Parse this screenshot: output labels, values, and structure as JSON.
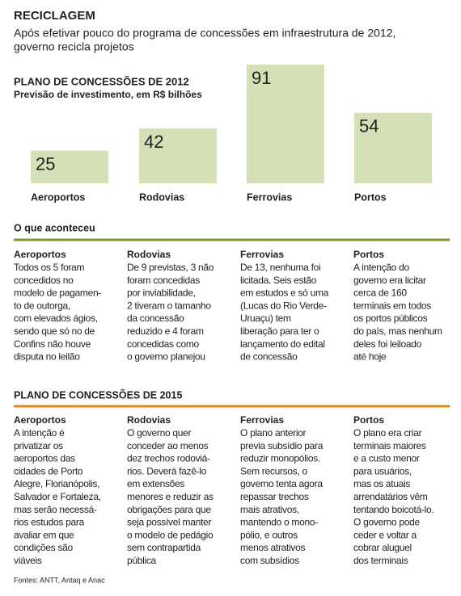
{
  "header": {
    "title": "RECICLAGEM",
    "subtitle_lines": [
      "Após efetivar pouco do programa de concessões em infraestrutura de 2012,",
      "governo recicla projetos"
    ]
  },
  "chart_data": {
    "type": "bar",
    "title": "PLANO DE CONCESSÕES DE 2012",
    "subtitle": "Previsão de investimento, em R$ bilhões",
    "categories": [
      "Aeroportos",
      "Rodovias",
      "Ferrovias",
      "Portos"
    ],
    "values": [
      25,
      42,
      91,
      54
    ],
    "color": "#d4e1b6"
  },
  "sections": [
    {
      "title": "O que aconteceu",
      "color": "#7b9a2c",
      "columns": [
        {
          "title": "Aeroportos",
          "lines": [
            "Todos os 5 foram",
            "concedidos no",
            "modelo de pagamen-",
            "to de outorga,",
            "com elevados ágios,",
            "sendo que só no de",
            "Confins não houve",
            "disputa no leilão"
          ]
        },
        {
          "title": "Rodovias",
          "lines": [
            "De 9 previstas, 3 não",
            "foram concedidas",
            "por inviabilidade,",
            "2 tiveram o tamanho",
            "da concessão",
            "reduzido e 4 foram",
            "concedidas como",
            "o governo planejou"
          ]
        },
        {
          "title": "Ferrovias",
          "lines": [
            "De 13, nenhuma foi",
            "licitada. Seis estão",
            "em estudos e só uma",
            "(Lucas do Rio Verde-",
            "Uruaçu) tem",
            "liberação para ter o",
            "lançamento do edital",
            "de concessão"
          ]
        },
        {
          "title": "Portos",
          "lines": [
            "A intenção do",
            "governo era licitar",
            "cerca de 160",
            "terminais em todos",
            "os portos públicos",
            "do país, mas nenhum",
            "deles foi leiloado",
            "até hoje"
          ]
        }
      ]
    },
    {
      "title": "PLANO DE CONCESSÕES DE 2015",
      "color": "#e08b1f",
      "columns": [
        {
          "title": "Aeroportos",
          "lines": [
            "A intenção é",
            "privatizar os",
            "aeroportos das",
            "cidades de Porto",
            "Alegre, Florianópolis,",
            "Salvador e Fortaleza,",
            "mas serão necessá-",
            "rios estudos para",
            "avaliar em que",
            "condições são",
            "viáveis"
          ]
        },
        {
          "title": "Rodovias",
          "lines": [
            "O governo quer",
            "conceder ao menos",
            "dez trechos rodoviá-",
            "rios. Deverá fazê-lo",
            "em extensões",
            "menores e reduzir as",
            "obrigações para que",
            "seja possível manter",
            "o modelo de pedágio",
            "sem contrapartida",
            "pública"
          ]
        },
        {
          "title": "Ferrovias",
          "lines": [
            "O plano anterior",
            "previa subsídio para",
            "reduzir monopólios.",
            "Sem recursos, o",
            "governo tenta agora",
            "repassar trechos",
            "mais atrativos,",
            "mantendo o mono-",
            "pólio, e outros",
            "menos atrativos",
            "com subsídios"
          ]
        },
        {
          "title": "Portos",
          "lines": [
            "O plano era criar",
            "terminais maiores",
            "e a custo menor",
            "para usuários,",
            "mas os atuais",
            "arrendatários vêm",
            "tentando boicotá-lo.",
            "O governo pode",
            "ceder e voltar a",
            "cobrar aluguel",
            "dos terminais"
          ]
        }
      ]
    }
  ],
  "footer": "Fontes: ANTT, Antaq e Anac"
}
